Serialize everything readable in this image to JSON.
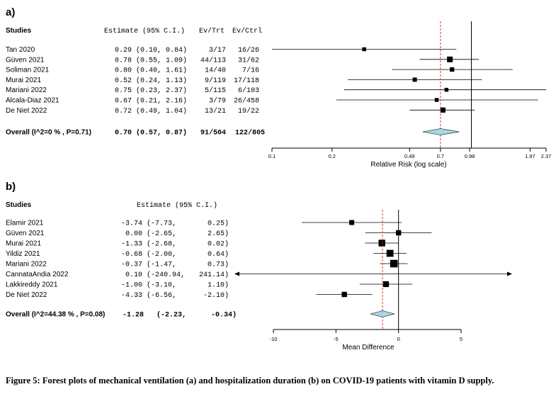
{
  "chart_data": [
    {
      "type": "forest",
      "panel_label": "a)",
      "header": {
        "studies": "Studies",
        "estimate": "Estimate (95% C.I.)",
        "ev_trt": "Ev/Trt",
        "ev_ctrl": "Ev/Ctrl"
      },
      "scale": "log",
      "xlim": [
        0.1,
        2.37
      ],
      "xticks": [
        0.1,
        0.2,
        0.49,
        0.7,
        0.98,
        1.97,
        2.37
      ],
      "xtick_labels": [
        "0.1",
        "0.2",
        "0.49",
        "0.7",
        "0.98",
        "1.97",
        "2.37"
      ],
      "xlabel": "Relative Risk (log scale)",
      "null_line": 1,
      "pooled_line": 0.7,
      "studies": [
        {
          "name": "Tan 2020",
          "est_text": "0.29",
          "ci_text": "(0.10, 0.84)",
          "ev_trt": "3/17",
          "ev_ctrl": "16/26",
          "est": 0.29,
          "lo": 0.1,
          "hi": 0.84,
          "weight": 1.0
        },
        {
          "name": "Güven 2021",
          "est_text": "0.78",
          "ci_text": "(0.55, 1.09)",
          "ev_trt": "44/113",
          "ev_ctrl": "31/62",
          "est": 0.78,
          "lo": 0.55,
          "hi": 1.09,
          "weight": 2.0
        },
        {
          "name": "Soliman 2021",
          "est_text": "0.80",
          "ci_text": "(0.40, 1.61)",
          "ev_trt": "14/40",
          "ev_ctrl": "7/16",
          "est": 0.8,
          "lo": 0.4,
          "hi": 1.61,
          "weight": 1.3
        },
        {
          "name": "Murai 2021",
          "est_text": "0.52",
          "ci_text": "(0.24, 1.13)",
          "ev_trt": "9/119",
          "ev_ctrl": "17/118",
          "est": 0.52,
          "lo": 0.24,
          "hi": 1.13,
          "weight": 1.2
        },
        {
          "name": "Mariani 2022",
          "est_text": "0.75",
          "ci_text": "(0.23, 2.37)",
          "ev_trt": "5/115",
          "ev_ctrl": "6/103",
          "est": 0.75,
          "lo": 0.23,
          "hi": 2.37,
          "weight": 1.0
        },
        {
          "name": "Alcala-Diaz 2021",
          "est_text": "0.67",
          "ci_text": "(0.21, 2.16)",
          "ev_trt": "3/79",
          "ev_ctrl": "26/458",
          "est": 0.67,
          "lo": 0.21,
          "hi": 2.16,
          "weight": 1.0
        },
        {
          "name": "De Niet 2022",
          "est_text": "0.72",
          "ci_text": "(0.49, 1.04)",
          "ev_trt": "13/21",
          "ev_ctrl": "19/22",
          "est": 0.72,
          "lo": 0.49,
          "hi": 1.04,
          "weight": 1.7
        }
      ],
      "overall": {
        "name": "Overall (I^2=0 % , P=0.71)",
        "est_text": "0.70",
        "ci_text": "(0.57, 0.87)",
        "ev_trt": "91/504",
        "ev_ctrl": "122/805",
        "est": 0.7,
        "lo": 0.57,
        "hi": 0.87
      }
    },
    {
      "type": "forest",
      "panel_label": "b)",
      "header": {
        "studies": "Studies",
        "estimate": "Estimate (95% C.I.)"
      },
      "scale": "linear",
      "xlim": [
        -10,
        5
      ],
      "xticks": [
        -10,
        -5,
        0,
        5
      ],
      "xtick_labels": [
        "-10",
        "-5",
        "0",
        "5"
      ],
      "xlabel": "Mean Difference",
      "null_line": 0,
      "pooled_line": -1.28,
      "studies": [
        {
          "name": "Elamir 2021",
          "est_text": "-3.74",
          "lo_text": "(-7.73,",
          "hi_text": "0.25)",
          "est": -3.74,
          "lo": -7.73,
          "hi": 0.25,
          "weight": 1.0
        },
        {
          "name": "Güven 2021",
          "est_text": "0.00",
          "lo_text": "(-2.65,",
          "hi_text": "2.65)",
          "est": 0.0,
          "lo": -2.65,
          "hi": 2.65,
          "weight": 1.1
        },
        {
          "name": "Murai 2021",
          "est_text": "-1.33",
          "lo_text": "(-2.68,",
          "hi_text": "0.02)",
          "est": -1.33,
          "lo": -2.68,
          "hi": 0.02,
          "weight": 1.6
        },
        {
          "name": "Yildiz 2021",
          "est_text": "-0.68",
          "lo_text": "(-2.00,",
          "hi_text": "0.64)",
          "est": -0.68,
          "lo": -2.0,
          "hi": 0.64,
          "weight": 1.7
        },
        {
          "name": "Mariani 2022",
          "est_text": "-0.37",
          "lo_text": "(-1.47,",
          "hi_text": "0.73)",
          "est": -0.37,
          "lo": -1.47,
          "hi": 0.73,
          "weight": 1.9
        },
        {
          "name": "CannataAndia 2022",
          "est_text": "0.10",
          "lo_text": "(-240.94,",
          "hi_text": "241.14)",
          "est": 0.1,
          "lo": -240.94,
          "hi": 241.14,
          "weight": 0.0
        },
        {
          "name": "Lakkireddy 2021",
          "est_text": "-1.00",
          "lo_text": "(-3.10,",
          "hi_text": "1.10)",
          "est": -1.0,
          "lo": -3.1,
          "hi": 1.1,
          "weight": 1.3
        },
        {
          "name": "De Niet 2022",
          "est_text": "-4.33",
          "lo_text": "(-6.56,",
          "hi_text": "-2.10)",
          "est": -4.33,
          "lo": -6.56,
          "hi": -2.1,
          "weight": 1.1
        }
      ],
      "overall": {
        "name": "Overall (I^2=44.38 % , P=0.08)",
        "est_text": "-1.28",
        "lo_text": "(-2.23,",
        "hi_text": "-0.34)",
        "est": -1.28,
        "lo": -2.23,
        "hi": -0.34
      }
    }
  ],
  "caption": "Figure 5: Forest plots of mechanical ventilation (a) and hospitalization duration (b) on COVID-19 patients with vitamin D supply.",
  "colors": {
    "diamond_fill": "#a6d7e4",
    "pooled_line": "#e0302a",
    "ink": "#000000"
  }
}
